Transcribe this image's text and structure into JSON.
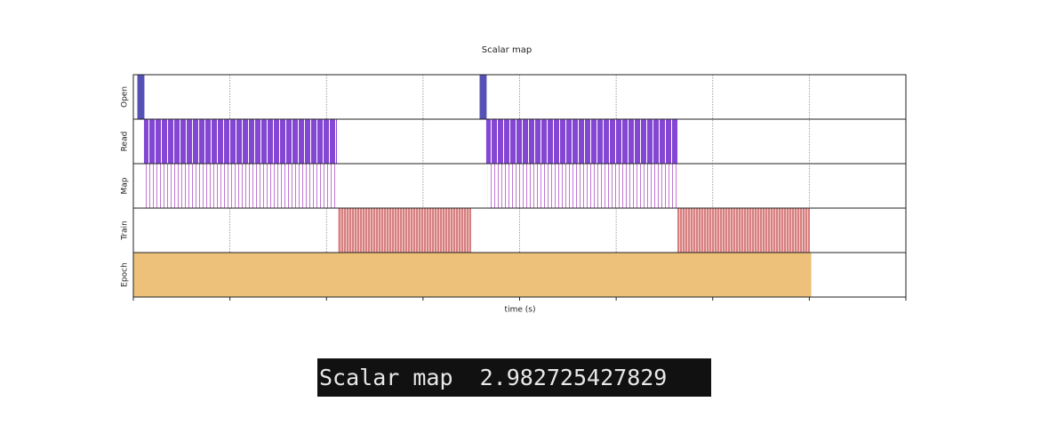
{
  "chart_data": {
    "type": "timeline",
    "title": "Scalar map",
    "x_label": "time (s)",
    "xlim": [
      0,
      4
    ],
    "xticks": [
      0,
      0.5,
      1,
      1.5,
      2,
      2.5,
      3,
      3.5,
      4
    ],
    "grid": true,
    "series": [
      {
        "name": "Open",
        "color": "#5552b5",
        "style": "solid",
        "values": [
          [
            0.023,
            0.055
          ],
          [
            1.795,
            1.827
          ]
        ]
      },
      {
        "name": "Read",
        "color": "#8447d4",
        "style": "striped",
        "values": [
          [
            0.055,
            1.054
          ],
          [
            1.827,
            2.817
          ]
        ]
      },
      {
        "name": "Map",
        "color": "#c278d4",
        "style": "lines",
        "values": [
          [
            0.064,
            1.054
          ],
          [
            1.836,
            2.817
          ]
        ]
      },
      {
        "name": "Train",
        "color": "#d67f7f",
        "style": "dense",
        "values": [
          [
            1.059,
            1.749
          ],
          [
            2.817,
            3.503
          ]
        ]
      },
      {
        "name": "Epoch",
        "color": "#edc17a",
        "style": "solid",
        "values": [
          [
            0,
            1.754
          ],
          [
            1.754,
            3.508
          ]
        ]
      }
    ]
  },
  "console": {
    "label": "Scalar map",
    "value": 2.982725427829
  }
}
